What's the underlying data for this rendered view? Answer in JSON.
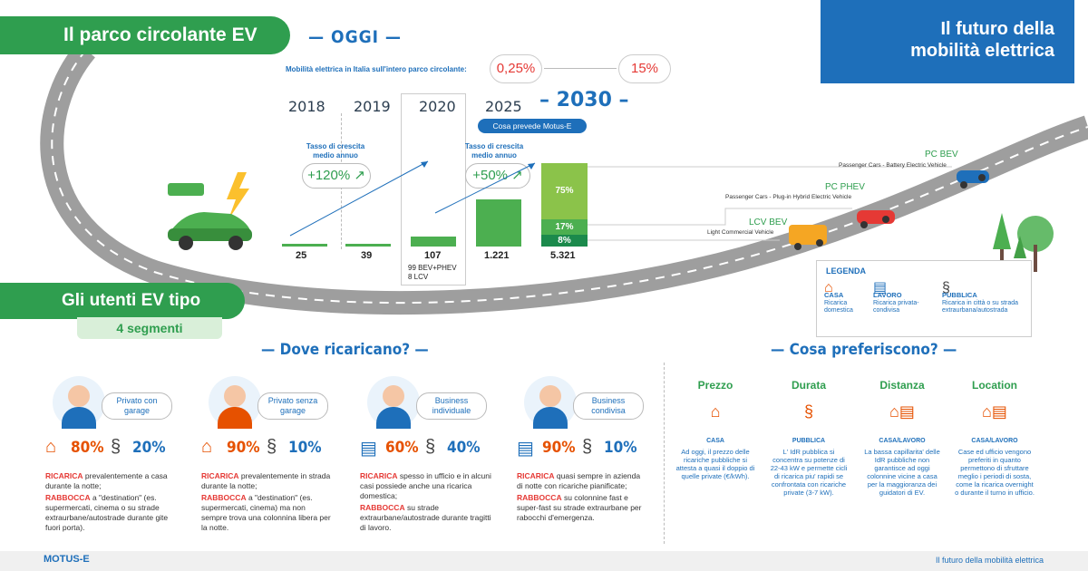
{
  "header": {
    "parco_title": "Il parco circolante EV",
    "oggi_label": "— OGGI —",
    "brand_title_line1": "Il futuro della",
    "brand_title_line2": "mobilità elettrica"
  },
  "share": {
    "label": "Mobilità elettrica in Italia sull'intero parco circolante:",
    "today": "0,25%",
    "future": "15%"
  },
  "timeline": {
    "years": [
      "2018",
      "2019",
      "2020",
      "2025",
      "– 2030 –"
    ],
    "motus_label": "Cosa prevede Motus-E",
    "growth1_label": "Tasso di crescita medio annuo",
    "growth1_value": "+120%",
    "growth2_label": "Tasso di crescita medio annuo",
    "growth2_value": "+50%",
    "values": [
      "25",
      "39",
      "107",
      "1.221",
      "5.321"
    ],
    "note_2020_line1": "99 BEV+PHEV",
    "note_2020_line2": "8  LCV",
    "split_2030": [
      "75%",
      "17%",
      "8%"
    ]
  },
  "chart_data": {
    "type": "bar",
    "categories": [
      "2018",
      "2019",
      "2020",
      "2025",
      "2030"
    ],
    "values": [
      25,
      39,
      107,
      1221,
      5321
    ],
    "split_2030": [
      {
        "name": "PC BEV",
        "value": 75
      },
      {
        "name": "PC PHEV",
        "value": 17
      },
      {
        "name": "LCV BEV",
        "value": 8
      }
    ]
  },
  "vehicles": {
    "pc_bev": "PC BEV",
    "pc_bev_desc": "Passenger Cars - Battery Electric Vehicle",
    "pc_phev": "PC PHEV",
    "pc_phev_desc": "Passenger Cars - Plug-in Hybrid Electric Vehicle",
    "lcv_bev": "LCV BEV",
    "lcv_bev_desc": "Light Commercial Vehicle"
  },
  "legend": {
    "title": "LEGENDA",
    "items": [
      {
        "name": "CASA",
        "desc": "Ricarica domestica"
      },
      {
        "name": "LAVORO",
        "desc": "Ricarica privata-condivisa"
      },
      {
        "name": "PUBBLICA",
        "desc": "Ricarica in città o su strada extraurbana/autostrada"
      }
    ]
  },
  "users": {
    "title": "Gli utenti EV tipo",
    "subtitle": "4 segmenti",
    "where_title": "— Dove ricaricano? —",
    "prefer_title": "— Cosa preferiscono? —",
    "segments": [
      {
        "label": "Privato con garage",
        "pct1": "80%",
        "pct2": "20%",
        "t1_red": "RICARICA",
        "t1": " prevalentemente a casa durante la notte;",
        "t2_red": "RABBOCCA",
        "t2": " a \"destination\" (es. supermercati, cinema o su strade extraurbane/autostrade durante gite fuori porta)."
      },
      {
        "label": "Privato senza garage",
        "pct1": "90%",
        "pct2": "10%",
        "t1_red": "RICARICA",
        "t1": " prevalentemente in strada durante la notte;",
        "t2_red": "RABBOCCA",
        "t2": " a \"destination\" (es. supermercati, cinema) ma non sempre trova una colonnina libera per la notte."
      },
      {
        "label": "Business individuale",
        "pct1": "60%",
        "pct2": "40%",
        "t1_red": "RICARICA",
        "t1": " spesso in ufficio e in alcuni casi possiede anche una ricarica domestica;",
        "t2_red": "RABBOCCA",
        "t2": " su strade extraurbane/autostrade durante tragitti di lavoro."
      },
      {
        "label": "Business condivisa",
        "pct1": "90%",
        "pct2": "10%",
        "t1_red": "RICARICA",
        "t1": " quasi sempre in azienda di notte con ricariche pianificate;",
        "t2_red": "RABBOCCA",
        "t2": " su colonnine fast e super-fast su strade extraurbane per rabocchi d'emergenza."
      }
    ],
    "preferences": [
      {
        "title": "Prezzo",
        "sub": "CASA",
        "text": "Ad oggi, il prezzo delle ricariche pubbliche si attesta a quasi il doppio di quelle private (€/kWh)."
      },
      {
        "title": "Durata",
        "sub": "PUBBLICA",
        "text": "L' IdR pubblica si concentra su potenze di 22-43 kW e permette cicli di ricarica piu' rapidi se confrontata con ricariche private (3-7 kW)."
      },
      {
        "title": "Distanza",
        "sub": "CASA/LAVORO",
        "text": "La bassa capillarita' delle IdR pubbliche non garantisce ad oggi colonnine vicine a casa per la maggioranza dei guidatori di EV."
      },
      {
        "title": "Location",
        "sub": "CASA/LAVORO",
        "text": "Case ed ufficio vengono preferiti in quanto permettono di sfruttare meglio i periodi di sosta, come la ricarica overnight o durante il turno in ufficio."
      }
    ]
  },
  "footer": {
    "brand": "MOTUS-E",
    "tagline": "Il futuro della mobilità elettrica"
  },
  "colors": {
    "green": "#2f9e4f",
    "blue": "#1e6fba",
    "red": "#e53935",
    "orange": "#e65100"
  }
}
